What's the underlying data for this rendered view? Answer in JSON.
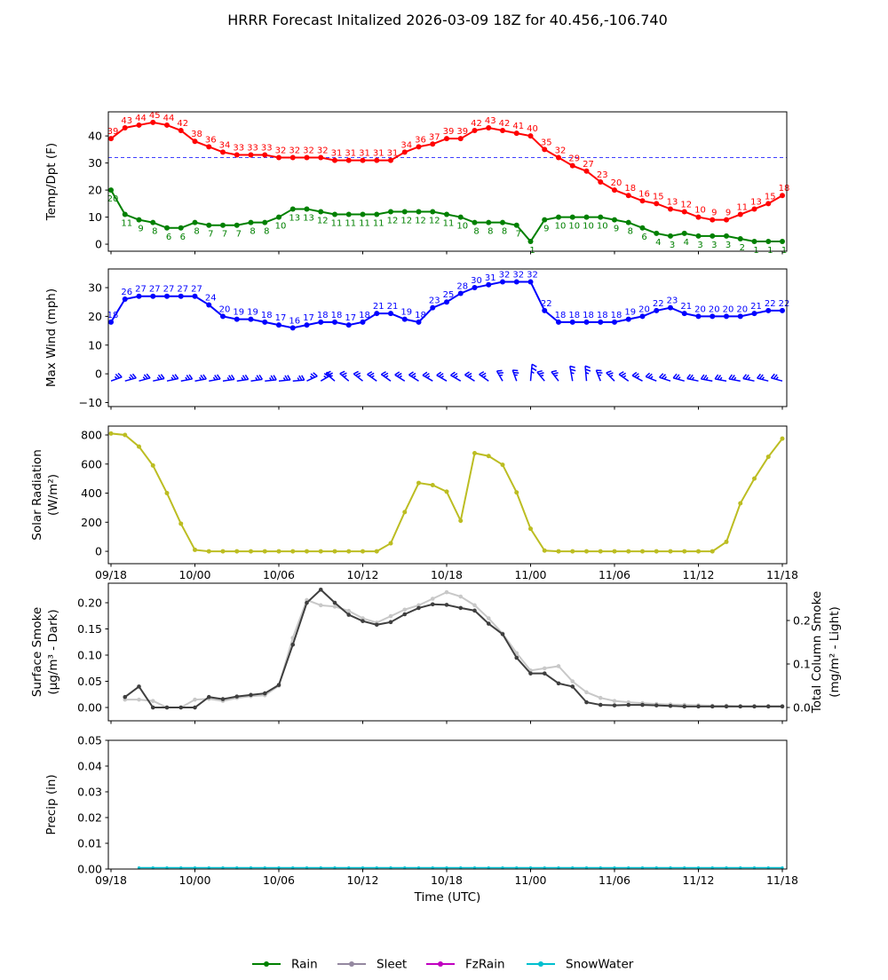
{
  "title": "HRRR Forecast Initalized 2026-03-09 18Z for 40.456,-106.740",
  "xaxis": {
    "label": "Time (UTC)",
    "tick_hours": [
      0,
      6,
      12,
      18,
      24,
      30,
      36,
      42,
      48
    ],
    "tick_labels": [
      "09/18",
      "10/00",
      "10/06",
      "10/12",
      "10/18",
      "11/00",
      "11/06",
      "11/12",
      "11/18"
    ]
  },
  "colors": {
    "temperature": "#ff0000",
    "dewpoint": "#008000",
    "wind": "#0000ff",
    "freeze_line": "#0000ff",
    "solar": "#bcbd22",
    "smoke_dark": "#3f3f3f",
    "smoke_light": "#c8c8c8",
    "rain": "#008000",
    "sleet": "#9488a0",
    "fzrain": "#c000c0",
    "snowwater": "#00bfcf",
    "axes": "#000000"
  },
  "chart_data": [
    {
      "type": "line",
      "panel": "temp_dpt",
      "ylabel_lines": [
        "Temp/Dpt (F)"
      ],
      "ylim": [
        -2.6,
        48.9
      ],
      "yticks": [
        0,
        10,
        20,
        30,
        40
      ],
      "ytick_labels": [
        "0",
        "10",
        "20",
        "30",
        "40"
      ],
      "freeze_line": 32,
      "show_xtick_labels": false,
      "series": [
        {
          "name": "Temperature",
          "color": "#ff0000",
          "h_start": 0,
          "point_labels": true,
          "label_pos": "above",
          "values": [
            39,
            43,
            44,
            45,
            44,
            42,
            38,
            36,
            34,
            33,
            33,
            33,
            32,
            32,
            32,
            32,
            31,
            31,
            31,
            31,
            31,
            34,
            36,
            37,
            39,
            39,
            42,
            43,
            42,
            41,
            40,
            35,
            32,
            29,
            27,
            23,
            20,
            18,
            16,
            15,
            13,
            12,
            10,
            9,
            9,
            11,
            13,
            15,
            18
          ]
        },
        {
          "name": "Dewpoint",
          "color": "#008000",
          "h_start": 0,
          "point_labels": true,
          "label_pos": "below",
          "values": [
            20,
            11,
            9,
            8,
            6,
            6,
            8,
            7,
            7,
            7,
            8,
            8,
            10,
            13,
            13,
            12,
            11,
            11,
            11,
            11,
            12,
            12,
            12,
            12,
            11,
            10,
            8,
            8,
            8,
            7,
            1,
            9,
            10,
            10,
            10,
            10,
            9,
            8,
            6,
            4,
            3,
            4,
            3,
            3,
            3,
            2,
            1,
            1,
            1
          ]
        }
      ]
    },
    {
      "type": "line",
      "panel": "wind",
      "ylabel_lines": [
        "Max Wind (mph)"
      ],
      "ylim": [
        -11.4,
        36.5
      ],
      "yticks": [
        -10,
        0,
        10,
        20,
        30
      ],
      "ytick_labels": [
        "−10",
        "0",
        "10",
        "20",
        "30"
      ],
      "show_xtick_labels": false,
      "series": [
        {
          "name": "Max Wind",
          "color": "#0000ff",
          "h_start": 0,
          "point_labels": true,
          "label_pos": "above",
          "values": [
            18,
            26,
            27,
            27,
            27,
            27,
            27,
            24,
            20,
            19,
            19,
            18,
            17,
            16,
            17,
            18,
            18,
            17,
            18,
            21,
            21,
            19,
            18,
            23,
            25,
            28,
            30,
            31,
            32,
            32,
            32,
            22,
            18,
            18,
            18,
            18,
            18,
            19,
            20,
            22,
            23,
            21,
            20,
            20,
            20,
            20,
            21,
            22,
            22
          ]
        }
      ],
      "barbs": {
        "color": "#0000ff",
        "y_value": -2.5,
        "h_start": 0,
        "default_len": 13,
        "angles": [
          20,
          15,
          15,
          12,
          12,
          10,
          10,
          10,
          8,
          8,
          8,
          6,
          6,
          5,
          25,
          30,
          140,
          140,
          142,
          145,
          145,
          148,
          148,
          150,
          150,
          150,
          148,
          145,
          120,
          110,
          85,
          130,
          128,
          100,
          95,
          112,
          135,
          145,
          152,
          158,
          162,
          165,
          168,
          170,
          170,
          170,
          168,
          166,
          165
        ],
        "len_overrides": {
          "30": 19,
          "33": 17,
          "34": 17
        }
      }
    },
    {
      "type": "line",
      "panel": "solar",
      "ylabel_lines": [
        "Solar Radiation",
        "(W/m²)"
      ],
      "ylim": [
        -85,
        861
      ],
      "yticks": [
        0,
        200,
        400,
        600,
        800
      ],
      "ytick_labels": [
        "0",
        "200",
        "400",
        "600",
        "800"
      ],
      "show_xtick_labels": true,
      "series": [
        {
          "name": "Solar Radiation",
          "color": "#bcbd22",
          "h_start": 0,
          "point_labels": false,
          "values": [
            810,
            800,
            720,
            590,
            400,
            190,
            10,
            0,
            0,
            0,
            0,
            0,
            0,
            0,
            0,
            0,
            0,
            0,
            0,
            0,
            55,
            270,
            470,
            455,
            410,
            210,
            675,
            655,
            595,
            405,
            155,
            5,
            0,
            0,
            0,
            0,
            0,
            0,
            0,
            0,
            0,
            0,
            0,
            0,
            65,
            330,
            500,
            650,
            775
          ]
        }
      ]
    },
    {
      "type": "line",
      "panel": "smoke",
      "ylabel_lines": [
        "Surface Smoke",
        "(µg/m³ - Dark)"
      ],
      "ylabel_right_lines": [
        "Total Column Smoke",
        "(mg/m² - Light)"
      ],
      "ylim": [
        -0.0254,
        0.2373
      ],
      "ylim_right": [
        -0.0306,
        0.2857
      ],
      "yticks": [
        0,
        0.05,
        0.1,
        0.15,
        0.2
      ],
      "ytick_labels": [
        "0.00",
        "0.05",
        "0.10",
        "0.15",
        "0.20"
      ],
      "yticks_right": [
        0,
        0.1,
        0.2
      ],
      "ytick_labels_right": [
        "0.0",
        "0.1",
        "0.2"
      ],
      "show_xtick_labels": false,
      "series": [
        {
          "name": "Total Column Smoke",
          "color": "#c8c8c8",
          "h_start": 1,
          "axis": "right",
          "point_labels": false,
          "values": [
            0.018,
            0.018,
            0.015,
            0,
            0,
            0.018,
            0.02,
            0.015,
            0.022,
            0.026,
            0.028,
            0.05,
            0.16,
            0.247,
            0.235,
            0.232,
            0.222,
            0.205,
            0.195,
            0.21,
            0.225,
            0.235,
            0.25,
            0.265,
            0.255,
            0.235,
            0.205,
            0.17,
            0.125,
            0.085,
            0.09,
            0.095,
            0.06,
            0.035,
            0.022,
            0.015,
            0.012,
            0.01,
            0.008,
            0.007,
            0.006,
            0.005,
            0.004,
            0.004,
            0.003,
            0.003,
            0.003,
            0.003
          ]
        },
        {
          "name": "Surface Smoke",
          "color": "#3f3f3f",
          "h_start": 1,
          "axis": "left",
          "point_labels": false,
          "values": [
            0.02,
            0.04,
            0,
            0,
            0,
            0,
            0.02,
            0.016,
            0.021,
            0.024,
            0.027,
            0.043,
            0.12,
            0.2,
            0.225,
            0.2,
            0.177,
            0.165,
            0.158,
            0.163,
            0.178,
            0.19,
            0.197,
            0.196,
            0.19,
            0.185,
            0.16,
            0.14,
            0.095,
            0.065,
            0.065,
            0.046,
            0.04,
            0.01,
            0.005,
            0.004,
            0.005,
            0.005,
            0.004,
            0.003,
            0.002,
            0.002,
            0.002,
            0.002,
            0.002,
            0.002,
            0.002,
            0.002
          ]
        }
      ]
    },
    {
      "type": "line",
      "panel": "precip",
      "ylabel_lines": [
        "Precip (in)"
      ],
      "ylim": [
        0,
        0.05
      ],
      "yticks": [
        0,
        0.01,
        0.02,
        0.03,
        0.04,
        0.05
      ],
      "ytick_labels": [
        "0.00",
        "0.01",
        "0.02",
        "0.03",
        "0.04",
        "0.05"
      ],
      "show_xtick_labels": true,
      "show_xaxis_title": true,
      "series": [
        {
          "name": "SnowWater",
          "color": "#00bfcf",
          "h_start": 2,
          "flat_value": 0.0005,
          "count": 47,
          "point_labels": false
        }
      ]
    }
  ],
  "legend": [
    {
      "label": "Rain",
      "color": "#008000"
    },
    {
      "label": "Sleet",
      "color": "#9488a0"
    },
    {
      "label": "FzRain",
      "color": "#c000c0"
    },
    {
      "label": "SnowWater",
      "color": "#00bfcf"
    }
  ]
}
